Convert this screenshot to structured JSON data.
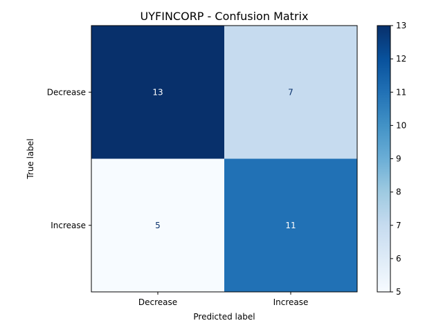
{
  "chart_data": {
    "type": "heatmap",
    "title": "UYFINCORP - Confusion Matrix",
    "xlabel": "Predicted label",
    "ylabel": "True label",
    "x_categories": [
      "Decrease",
      "Increase"
    ],
    "y_categories": [
      "Decrease",
      "Increase"
    ],
    "values": [
      [
        13,
        7
      ],
      [
        5,
        11
      ]
    ],
    "colormap": "Blues",
    "colorbar": {
      "min": 5,
      "max": 13,
      "ticks": [
        "5",
        "6",
        "7",
        "8",
        "9",
        "10",
        "11",
        "12",
        "13"
      ]
    },
    "colors": {
      "cell_text_dark_bg": "#ffffff",
      "cell_text_light_bg": "#08306b"
    }
  }
}
